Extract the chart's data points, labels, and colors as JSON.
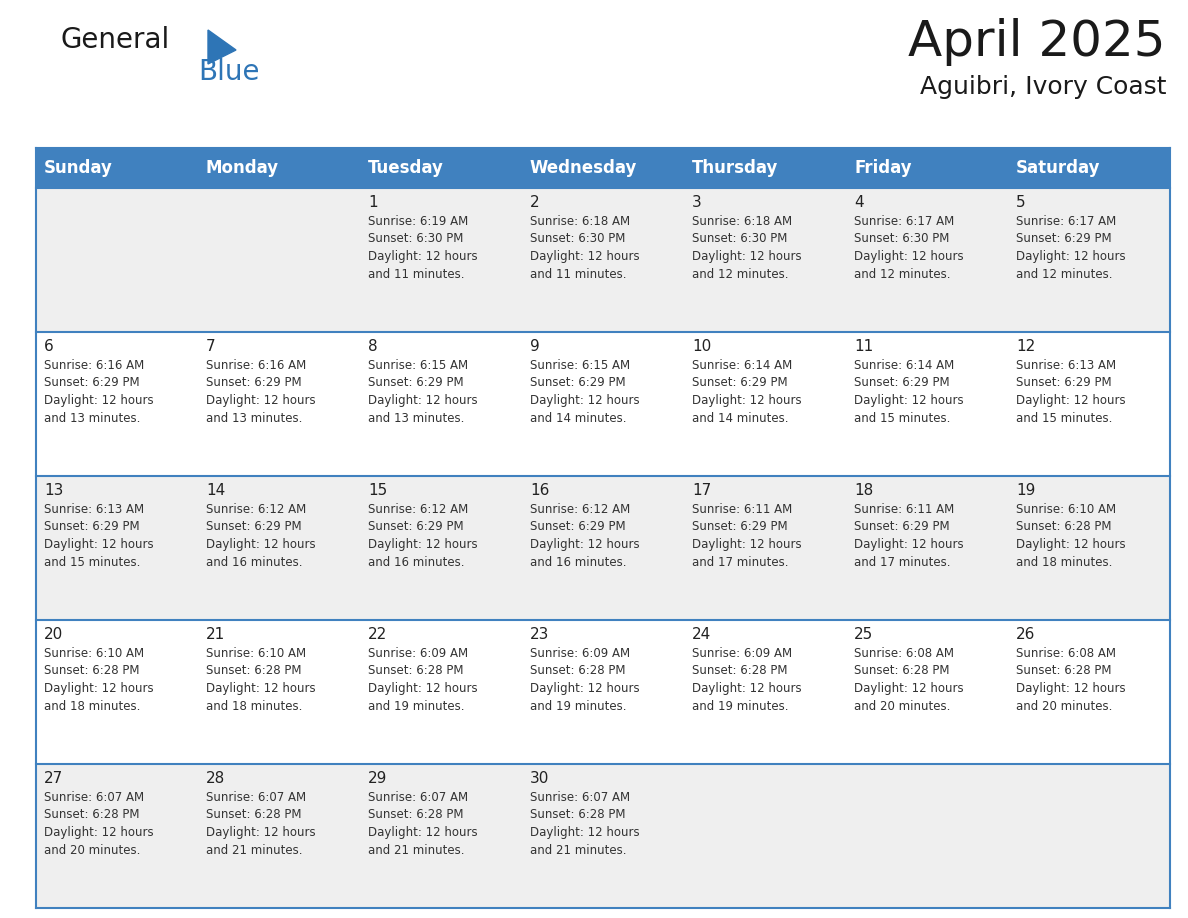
{
  "title": "April 2025",
  "subtitle": "Aguibri, Ivory Coast",
  "days_of_week": [
    "Sunday",
    "Monday",
    "Tuesday",
    "Wednesday",
    "Thursday",
    "Friday",
    "Saturday"
  ],
  "header_bg": "#4081BF",
  "header_text": "#FFFFFF",
  "row_bg_odd": "#EFEFEF",
  "row_bg_even": "#FFFFFF",
  "text_color": "#333333",
  "day_num_color": "#222222",
  "line_color": "#4081BF",
  "calendar": [
    [
      {
        "day": null,
        "info": null
      },
      {
        "day": null,
        "info": null
      },
      {
        "day": 1,
        "info": "Sunrise: 6:19 AM\nSunset: 6:30 PM\nDaylight: 12 hours\nand 11 minutes."
      },
      {
        "day": 2,
        "info": "Sunrise: 6:18 AM\nSunset: 6:30 PM\nDaylight: 12 hours\nand 11 minutes."
      },
      {
        "day": 3,
        "info": "Sunrise: 6:18 AM\nSunset: 6:30 PM\nDaylight: 12 hours\nand 12 minutes."
      },
      {
        "day": 4,
        "info": "Sunrise: 6:17 AM\nSunset: 6:30 PM\nDaylight: 12 hours\nand 12 minutes."
      },
      {
        "day": 5,
        "info": "Sunrise: 6:17 AM\nSunset: 6:29 PM\nDaylight: 12 hours\nand 12 minutes."
      }
    ],
    [
      {
        "day": 6,
        "info": "Sunrise: 6:16 AM\nSunset: 6:29 PM\nDaylight: 12 hours\nand 13 minutes."
      },
      {
        "day": 7,
        "info": "Sunrise: 6:16 AM\nSunset: 6:29 PM\nDaylight: 12 hours\nand 13 minutes."
      },
      {
        "day": 8,
        "info": "Sunrise: 6:15 AM\nSunset: 6:29 PM\nDaylight: 12 hours\nand 13 minutes."
      },
      {
        "day": 9,
        "info": "Sunrise: 6:15 AM\nSunset: 6:29 PM\nDaylight: 12 hours\nand 14 minutes."
      },
      {
        "day": 10,
        "info": "Sunrise: 6:14 AM\nSunset: 6:29 PM\nDaylight: 12 hours\nand 14 minutes."
      },
      {
        "day": 11,
        "info": "Sunrise: 6:14 AM\nSunset: 6:29 PM\nDaylight: 12 hours\nand 15 minutes."
      },
      {
        "day": 12,
        "info": "Sunrise: 6:13 AM\nSunset: 6:29 PM\nDaylight: 12 hours\nand 15 minutes."
      }
    ],
    [
      {
        "day": 13,
        "info": "Sunrise: 6:13 AM\nSunset: 6:29 PM\nDaylight: 12 hours\nand 15 minutes."
      },
      {
        "day": 14,
        "info": "Sunrise: 6:12 AM\nSunset: 6:29 PM\nDaylight: 12 hours\nand 16 minutes."
      },
      {
        "day": 15,
        "info": "Sunrise: 6:12 AM\nSunset: 6:29 PM\nDaylight: 12 hours\nand 16 minutes."
      },
      {
        "day": 16,
        "info": "Sunrise: 6:12 AM\nSunset: 6:29 PM\nDaylight: 12 hours\nand 16 minutes."
      },
      {
        "day": 17,
        "info": "Sunrise: 6:11 AM\nSunset: 6:29 PM\nDaylight: 12 hours\nand 17 minutes."
      },
      {
        "day": 18,
        "info": "Sunrise: 6:11 AM\nSunset: 6:29 PM\nDaylight: 12 hours\nand 17 minutes."
      },
      {
        "day": 19,
        "info": "Sunrise: 6:10 AM\nSunset: 6:28 PM\nDaylight: 12 hours\nand 18 minutes."
      }
    ],
    [
      {
        "day": 20,
        "info": "Sunrise: 6:10 AM\nSunset: 6:28 PM\nDaylight: 12 hours\nand 18 minutes."
      },
      {
        "day": 21,
        "info": "Sunrise: 6:10 AM\nSunset: 6:28 PM\nDaylight: 12 hours\nand 18 minutes."
      },
      {
        "day": 22,
        "info": "Sunrise: 6:09 AM\nSunset: 6:28 PM\nDaylight: 12 hours\nand 19 minutes."
      },
      {
        "day": 23,
        "info": "Sunrise: 6:09 AM\nSunset: 6:28 PM\nDaylight: 12 hours\nand 19 minutes."
      },
      {
        "day": 24,
        "info": "Sunrise: 6:09 AM\nSunset: 6:28 PM\nDaylight: 12 hours\nand 19 minutes."
      },
      {
        "day": 25,
        "info": "Sunrise: 6:08 AM\nSunset: 6:28 PM\nDaylight: 12 hours\nand 20 minutes."
      },
      {
        "day": 26,
        "info": "Sunrise: 6:08 AM\nSunset: 6:28 PM\nDaylight: 12 hours\nand 20 minutes."
      }
    ],
    [
      {
        "day": 27,
        "info": "Sunrise: 6:07 AM\nSunset: 6:28 PM\nDaylight: 12 hours\nand 20 minutes."
      },
      {
        "day": 28,
        "info": "Sunrise: 6:07 AM\nSunset: 6:28 PM\nDaylight: 12 hours\nand 21 minutes."
      },
      {
        "day": 29,
        "info": "Sunrise: 6:07 AM\nSunset: 6:28 PM\nDaylight: 12 hours\nand 21 minutes."
      },
      {
        "day": 30,
        "info": "Sunrise: 6:07 AM\nSunset: 6:28 PM\nDaylight: 12 hours\nand 21 minutes."
      },
      {
        "day": null,
        "info": null
      },
      {
        "day": null,
        "info": null
      },
      {
        "day": null,
        "info": null
      }
    ]
  ],
  "n_rows": 5,
  "n_cols": 7,
  "logo_text1": "General",
  "logo_text2": "Blue",
  "logo_color1": "#1a1a1a",
  "logo_color2": "#2E75B6",
  "logo_triangle_color": "#2E75B6",
  "title_fontsize": 36,
  "subtitle_fontsize": 18,
  "dow_fontsize": 12,
  "day_num_fontsize": 11,
  "info_fontsize": 8.5
}
